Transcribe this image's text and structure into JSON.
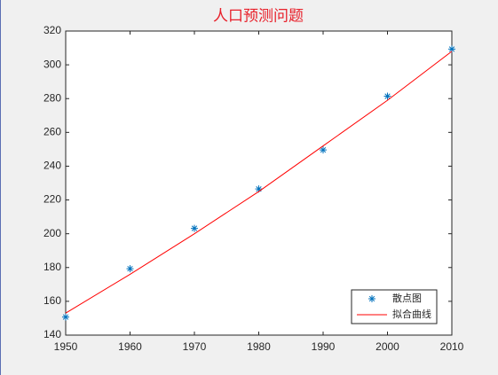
{
  "chart_data": {
    "type": "scatter",
    "title": "人口预测问题",
    "x": [
      1950,
      1960,
      1970,
      1980,
      1990,
      2000,
      2010
    ],
    "series": [
      {
        "name": "散点图",
        "color": "#0072bd",
        "style": "marker",
        "values": [
          150.7,
          179.3,
          203.2,
          226.5,
          249.6,
          281.4,
          309.3
        ]
      },
      {
        "name": "拟合曲线",
        "color": "#ff0000",
        "style": "line",
        "values": [
          153,
          176,
          200,
          225,
          252,
          279,
          308
        ]
      }
    ],
    "xlim": [
      1950,
      2010
    ],
    "xticks": [
      1950,
      1960,
      1970,
      1980,
      1990,
      2000,
      2010
    ],
    "ylim": [
      140,
      320
    ],
    "yticks": [
      140,
      160,
      180,
      200,
      220,
      240,
      260,
      280,
      300,
      320
    ],
    "grid": false,
    "legend": "southeast"
  }
}
